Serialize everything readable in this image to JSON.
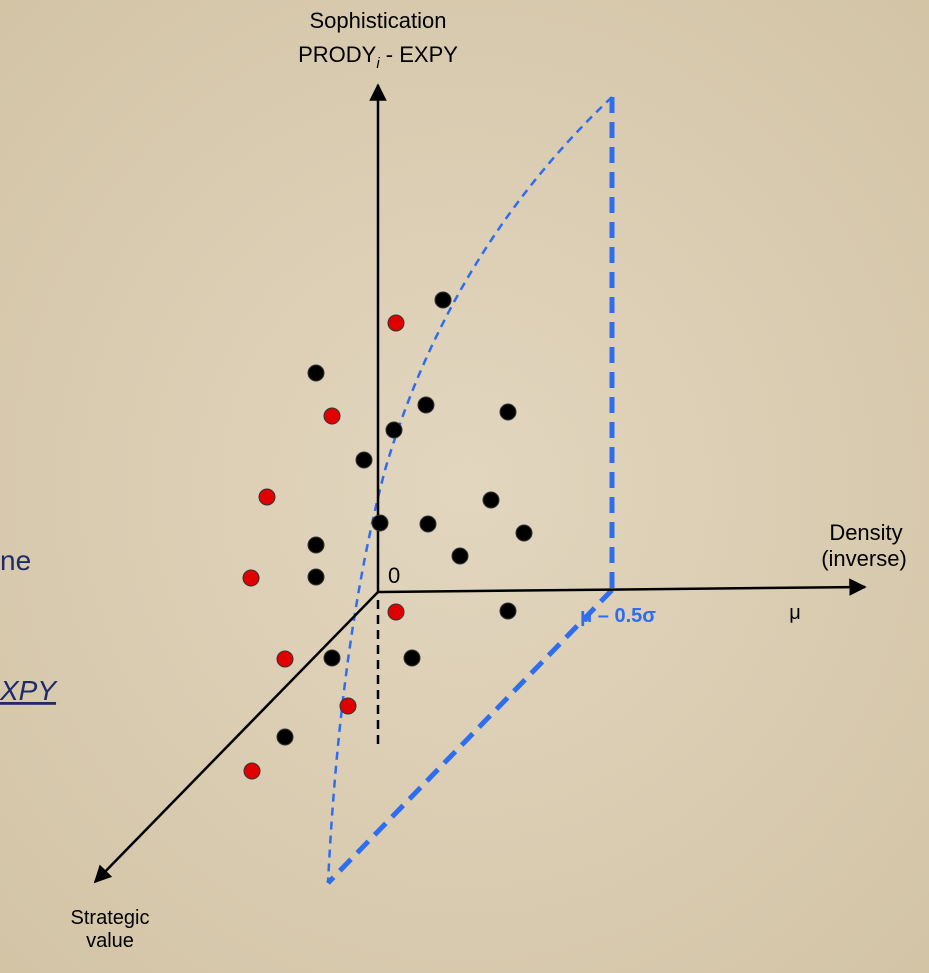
{
  "axes": {
    "vertical": {
      "line1": "Sophistication",
      "line2": {
        "main": "PRODY",
        "subscript": "i",
        "rest": " - EXPY"
      }
    },
    "horizontal": {
      "line1": "Density",
      "line2": "(inverse)"
    },
    "depth": {
      "line1": "Strategic",
      "line2": "value"
    },
    "origin": "0"
  },
  "annotations": {
    "threshold": "μ – 0.5σ",
    "mean": "μ"
  },
  "side_text": {
    "fragment1": "ne",
    "fragment2": "XPY"
  }
}
